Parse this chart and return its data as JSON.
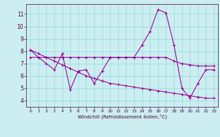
{
  "x": [
    0,
    1,
    2,
    3,
    4,
    5,
    6,
    7,
    8,
    9,
    10,
    11,
    12,
    13,
    14,
    15,
    16,
    17,
    18,
    19,
    20,
    21,
    22,
    23
  ],
  "line1": [
    8.1,
    7.5,
    7.0,
    6.5,
    7.8,
    4.9,
    6.4,
    6.5,
    5.4,
    6.4,
    7.5,
    7.5,
    7.5,
    7.5,
    8.5,
    9.6,
    11.35,
    11.1,
    8.5,
    5.0,
    4.2,
    5.4,
    6.5,
    6.5
  ],
  "line2": [
    7.5,
    7.5,
    7.5,
    7.5,
    7.5,
    7.5,
    7.5,
    7.5,
    7.5,
    7.5,
    7.5,
    7.5,
    7.5,
    7.5,
    7.5,
    7.5,
    7.5,
    7.5,
    7.2,
    7.0,
    6.9,
    6.8,
    6.8,
    6.8
  ],
  "line3": [
    8.1,
    7.8,
    7.5,
    7.2,
    6.9,
    6.6,
    6.3,
    6.0,
    5.8,
    5.6,
    5.4,
    5.3,
    5.2,
    5.1,
    5.0,
    4.9,
    4.8,
    4.7,
    4.6,
    4.5,
    4.4,
    4.3,
    4.2,
    4.2
  ],
  "line_color": "#990099",
  "bg_color": "#cceef0",
  "grid_color": "#99dddd",
  "xlabel": "Windchill (Refroidissement éolien,°C)",
  "ylim": [
    3.5,
    11.8
  ],
  "xlim": [
    -0.5,
    23.5
  ],
  "yticks": [
    4,
    5,
    6,
    7,
    8,
    9,
    10,
    11
  ],
  "xticks": [
    0,
    1,
    2,
    3,
    4,
    5,
    6,
    7,
    8,
    9,
    10,
    11,
    12,
    13,
    14,
    15,
    16,
    17,
    18,
    19,
    20,
    21,
    22,
    23
  ]
}
